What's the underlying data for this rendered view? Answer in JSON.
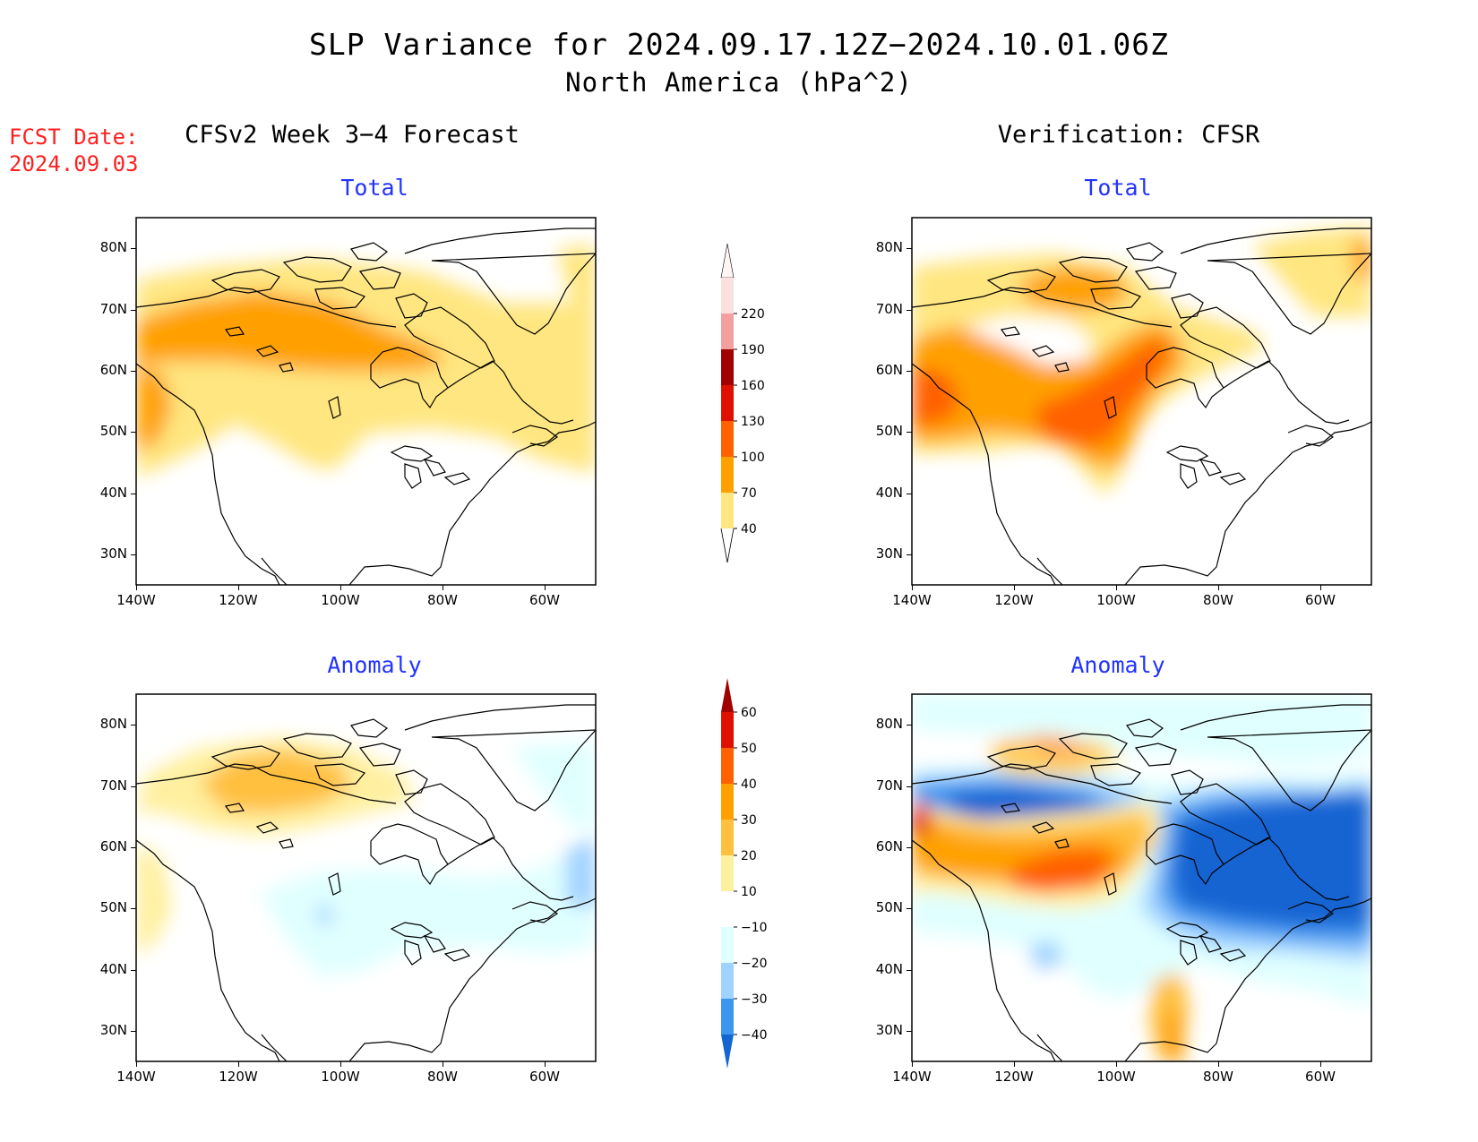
{
  "title": "SLP Variance for 2024.09.17.12Z−2024.10.01.06Z",
  "subtitle": "North America (hPa^2)",
  "fcst_date_label": "FCST Date:",
  "fcst_date": "2024.09.03",
  "columns": [
    {
      "heading": "CFSv2 Week 3−4 Forecast"
    },
    {
      "heading": "Verification: CFSR"
    }
  ],
  "panel_titles": {
    "total": "Total",
    "anomaly": "Anomaly"
  },
  "axes": {
    "lon_ticks": [
      "140W",
      "120W",
      "100W",
      "80W",
      "60W"
    ],
    "lat_ticks": [
      "80N",
      "70N",
      "60N",
      "50N",
      "40N",
      "30N"
    ],
    "lon_range": [
      -140,
      -50
    ],
    "lat_range": [
      25,
      85
    ]
  },
  "colorbars": {
    "total": {
      "labels": [
        "40",
        "70",
        "100",
        "130",
        "160",
        "190",
        "220"
      ],
      "colors": [
        "#ffe680",
        "#ffa000",
        "#ff6000",
        "#e01000",
        "#a00000",
        "#f4a0a0",
        "#fce0e0"
      ]
    },
    "anomaly": {
      "labels": [
        "60",
        "50",
        "40",
        "30",
        "20",
        "10",
        "−10",
        "−20",
        "−30",
        "−40"
      ],
      "colors_top_to_bottom": [
        "#a00000",
        "#e01000",
        "#ff6000",
        "#ffa000",
        "#ffc040",
        "#fff0a0",
        "#ffffff",
        "#e0ffff",
        "#a0d2ff",
        "#3c96f0",
        "#1464d2"
      ]
    }
  },
  "legend_colors": {
    "accent_title": "#2233ff",
    "fcst_date": "#ff2020"
  }
}
